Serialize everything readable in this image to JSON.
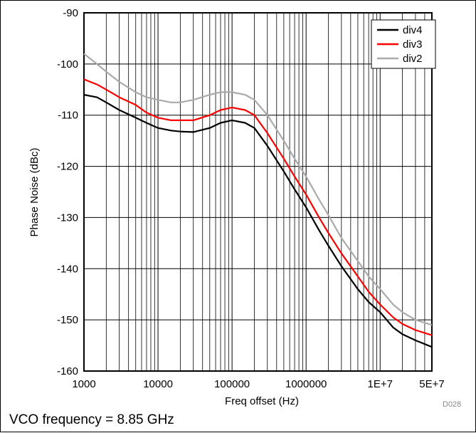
{
  "chart_data": {
    "type": "line",
    "x_scale": "log",
    "xlabel": "Freq offset (Hz)",
    "ylabel": "Phase Noise (dBc)",
    "xlim": [
      1000,
      50000000
    ],
    "ylim": [
      -160,
      -90
    ],
    "x_tick_labels": [
      "1000",
      "10000",
      "100000",
      "1000000",
      "1E+7",
      "5E+7"
    ],
    "x_tick_values": [
      1000,
      10000,
      100000,
      1000000,
      10000000,
      50000000
    ],
    "y_ticks": [
      -90,
      -100,
      -110,
      -120,
      -130,
      -140,
      -150,
      -160
    ],
    "grid": true,
    "legend_position": "top-right",
    "series": [
      {
        "name": "div4",
        "color": "#000000",
        "x": [
          1000,
          1500,
          2000,
          3000,
          5000,
          7000,
          10000,
          15000,
          20000,
          30000,
          50000,
          70000,
          100000,
          150000,
          200000,
          300000,
          500000,
          700000,
          1000000,
          1500000,
          2000000,
          3000000,
          5000000,
          7000000,
          10000000,
          15000000,
          20000000,
          30000000,
          50000000
        ],
        "y": [
          -106,
          -106.5,
          -107.5,
          -109,
          -110.5,
          -111.5,
          -112.5,
          -113,
          -113.2,
          -113.3,
          -112.5,
          -111.5,
          -111,
          -111.5,
          -112.5,
          -116,
          -121,
          -124.5,
          -128,
          -132.5,
          -135.5,
          -139.5,
          -144,
          -146.5,
          -148.5,
          -151.5,
          -152.8,
          -154,
          -155.3
        ]
      },
      {
        "name": "div3",
        "color": "#ff0000",
        "x": [
          1000,
          1500,
          2000,
          3000,
          5000,
          7000,
          10000,
          15000,
          20000,
          30000,
          50000,
          70000,
          100000,
          150000,
          200000,
          300000,
          500000,
          700000,
          1000000,
          1500000,
          2000000,
          3000000,
          5000000,
          7000000,
          10000000,
          15000000,
          20000000,
          30000000,
          50000000
        ],
        "y": [
          -103,
          -104,
          -105,
          -106.5,
          -108,
          -109.5,
          -110.5,
          -111,
          -111,
          -111,
          -110,
          -109,
          -108.5,
          -109,
          -110,
          -113.5,
          -118.5,
          -122,
          -125.5,
          -130,
          -133,
          -137,
          -141.5,
          -144.5,
          -147,
          -149.5,
          -150.8,
          -152,
          -153
        ]
      },
      {
        "name": "div2",
        "color": "#aaaaaa",
        "x": [
          1000,
          1500,
          2000,
          3000,
          5000,
          7000,
          10000,
          15000,
          20000,
          30000,
          50000,
          70000,
          100000,
          150000,
          200000,
          300000,
          500000,
          700000,
          1000000,
          1500000,
          2000000,
          3000000,
          5000000,
          7000000,
          10000000,
          15000000,
          20000000,
          30000000,
          50000000
        ],
        "y": [
          -98,
          -100,
          -101.5,
          -103.5,
          -105.5,
          -106.5,
          -107,
          -107.5,
          -107.5,
          -107,
          -106,
          -105.5,
          -105.5,
          -106,
          -107,
          -110,
          -115,
          -118.5,
          -122,
          -126.5,
          -129.5,
          -134,
          -138.5,
          -141.5,
          -144,
          -147,
          -148.5,
          -150,
          -151
        ]
      }
    ]
  },
  "caption": "VCO frequency = 8.85 GHz",
  "doc_id": "D028"
}
